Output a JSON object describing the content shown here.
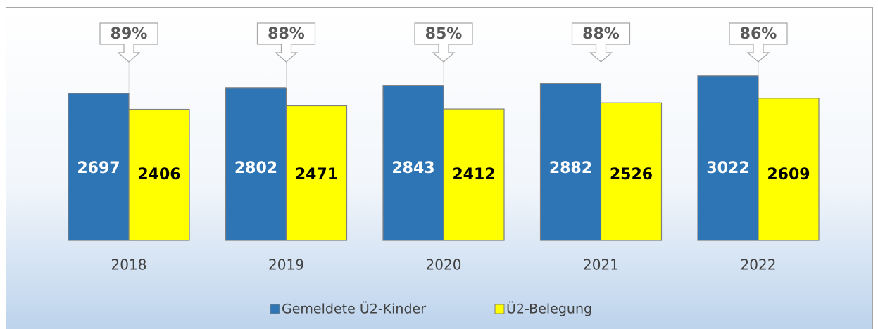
{
  "chart_data": {
    "type": "bar",
    "categories": [
      "2018",
      "2019",
      "2020",
      "2021",
      "2022"
    ],
    "series": [
      {
        "name": "Gemeldete Ü2-Kinder",
        "color": "#2e75b6",
        "values": [
          2697,
          2802,
          2843,
          2882,
          3022
        ]
      },
      {
        "name": "Ü2-Belegung",
        "color": "#ffff00",
        "values": [
          2406,
          2471,
          2412,
          2526,
          2609
        ]
      }
    ],
    "annotations": {
      "values": [
        89,
        88,
        85,
        88,
        86
      ],
      "value_labels": [
        "89%",
        "88%",
        "85%",
        "88%",
        "86%"
      ]
    },
    "legend": "bottom"
  }
}
